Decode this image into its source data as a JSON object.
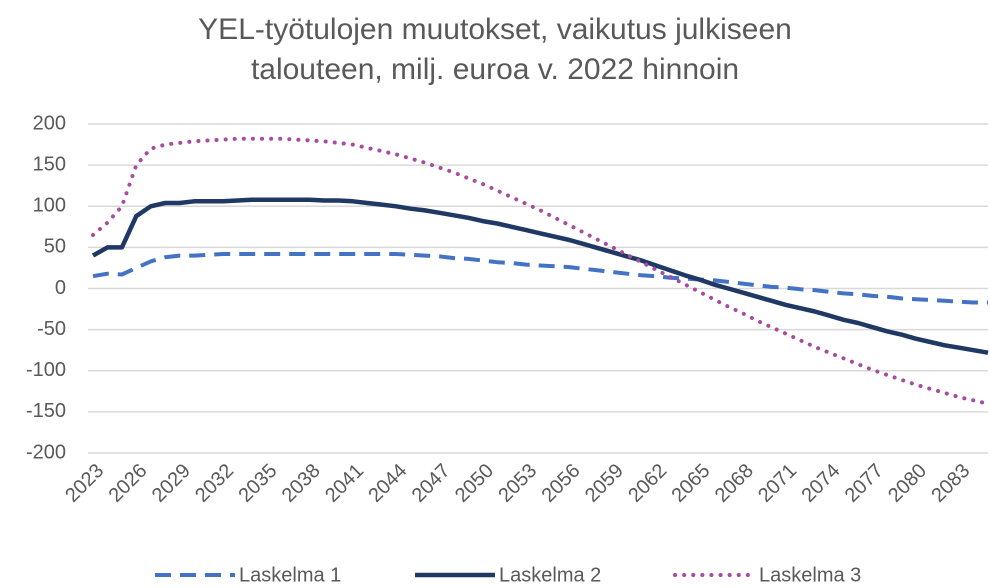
{
  "chart_data": {
    "type": "line",
    "title": "YEL-työtulojen muutokset, vaikutus julkiseen talouteen, milj. euroa v. 2022 hinnoin",
    "x": [
      2023,
      2024,
      2025,
      2026,
      2027,
      2028,
      2029,
      2030,
      2031,
      2032,
      2033,
      2034,
      2035,
      2036,
      2037,
      2038,
      2039,
      2040,
      2041,
      2042,
      2043,
      2044,
      2045,
      2046,
      2047,
      2048,
      2049,
      2050,
      2051,
      2052,
      2053,
      2054,
      2055,
      2056,
      2057,
      2058,
      2059,
      2060,
      2061,
      2062,
      2063,
      2064,
      2065,
      2066,
      2067,
      2068,
      2069,
      2070,
      2071,
      2072,
      2073,
      2074,
      2075,
      2076,
      2077,
      2078,
      2079,
      2080,
      2081,
      2082,
      2083,
      2084,
      2085
    ],
    "xlim": [
      2023,
      2085
    ],
    "xticks": [
      2023,
      2026,
      2029,
      2032,
      2035,
      2038,
      2041,
      2044,
      2047,
      2050,
      2053,
      2056,
      2059,
      2062,
      2065,
      2068,
      2071,
      2074,
      2077,
      2080,
      2083
    ],
    "ylim": [
      -200,
      200
    ],
    "yticks": [
      -200,
      -150,
      -100,
      -50,
      0,
      50,
      100,
      150,
      200
    ],
    "grid": true,
    "series": [
      {
        "name": "Laskelma 1",
        "color": "#4472c4",
        "style": "dashed",
        "values": [
          15,
          18,
          17,
          25,
          33,
          38,
          40,
          40,
          41,
          42,
          42,
          42,
          42,
          42,
          42,
          42,
          42,
          42,
          42,
          42,
          42,
          42,
          41,
          40,
          39,
          37,
          36,
          34,
          32,
          31,
          29,
          28,
          27,
          26,
          24,
          22,
          20,
          18,
          16,
          15,
          13,
          12,
          11,
          10,
          8,
          6,
          4,
          2,
          1,
          -1,
          -2,
          -4,
          -6,
          -7,
          -9,
          -10,
          -12,
          -13,
          -14,
          -15,
          -16,
          -17,
          -17
        ]
      },
      {
        "name": "Laskelma 2",
        "color": "#1f3864",
        "style": "solid",
        "values": [
          40,
          50,
          50,
          88,
          100,
          104,
          104,
          106,
          106,
          106,
          107,
          108,
          108,
          108,
          108,
          108,
          107,
          107,
          106,
          104,
          102,
          100,
          97,
          95,
          92,
          89,
          86,
          82,
          79,
          75,
          71,
          67,
          63,
          59,
          54,
          49,
          44,
          39,
          34,
          28,
          22,
          16,
          11,
          5,
          0,
          -5,
          -10,
          -15,
          -20,
          -24,
          -28,
          -33,
          -38,
          -42,
          -47,
          -52,
          -56,
          -61,
          -65,
          -69,
          -72,
          -75,
          -78
        ]
      },
      {
        "name": "Laskelma 3",
        "color": "#a64d9f",
        "style": "dotted",
        "values": [
          65,
          80,
          100,
          150,
          170,
          175,
          177,
          179,
          180,
          181,
          182,
          182,
          182,
          182,
          181,
          180,
          179,
          177,
          175,
          171,
          167,
          163,
          158,
          153,
          147,
          141,
          134,
          127,
          119,
          111,
          103,
          95,
          86,
          77,
          68,
          59,
          50,
          41,
          32,
          23,
          14,
          5,
          -4,
          -13,
          -22,
          -30,
          -39,
          -47,
          -55,
          -63,
          -71,
          -78,
          -85,
          -92,
          -99,
          -105,
          -111,
          -117,
          -122,
          -127,
          -132,
          -136,
          -140
        ]
      }
    ]
  }
}
